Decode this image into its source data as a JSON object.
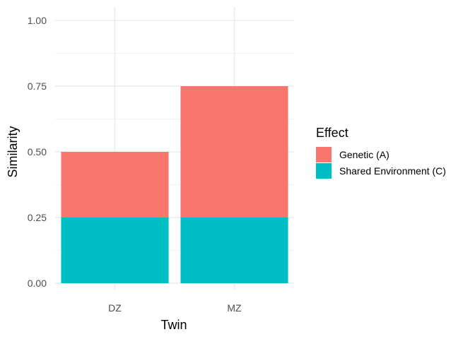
{
  "chart_data": {
    "type": "bar",
    "stacked": true,
    "categories": [
      "DZ",
      "MZ"
    ],
    "series": [
      {
        "name": "Shared Environment (C)",
        "values": [
          0.25,
          0.25
        ],
        "color": "#00BFC4"
      },
      {
        "name": "Genetic (A)",
        "values": [
          0.25,
          0.5
        ],
        "color": "#F8766D"
      }
    ],
    "xlabel": "Twin",
    "ylabel": "Similarity",
    "ylim": [
      0,
      1.0
    ],
    "yticks": [
      0.0,
      0.25,
      0.5,
      0.75,
      1.0
    ],
    "ytick_labels": [
      "0.00",
      "0.25",
      "0.50",
      "0.75",
      "1.00"
    ],
    "grid": true,
    "legend": {
      "title": "Effect",
      "placement": "right",
      "entries": [
        {
          "label": "Genetic (A)",
          "color": "#F8766D"
        },
        {
          "label": "Shared Environment (C)",
          "color": "#00BFC4"
        }
      ]
    }
  }
}
